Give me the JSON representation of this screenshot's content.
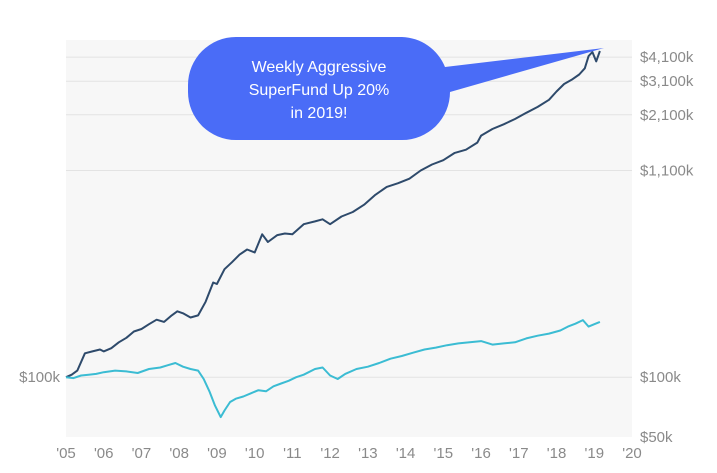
{
  "chart_data": {
    "type": "line",
    "title": "",
    "xlabel": "",
    "ylabel": "",
    "y_scale": "log",
    "ylim": [
      50,
      5000
    ],
    "xlim": [
      2005,
      2020
    ],
    "x_ticks": [
      "'05",
      "'06",
      "'07",
      "'08",
      "'09",
      "'10",
      "'11",
      "'12",
      "'13",
      "'14",
      "'15",
      "'16",
      "'17",
      "'18",
      "'19",
      "'20"
    ],
    "x_tick_values": [
      2005,
      2006,
      2007,
      2008,
      2009,
      2010,
      2011,
      2012,
      2013,
      2014,
      2015,
      2016,
      2017,
      2018,
      2019,
      2020
    ],
    "y_ticks_right": [
      "$4,100k",
      "$3,100k",
      "$2,100k",
      "$1,100k",
      "$100k",
      "$50k"
    ],
    "y_tick_values_right": [
      4100,
      3100,
      2100,
      1100,
      100,
      50
    ],
    "y_ticks_left": [
      "$100k"
    ],
    "y_tick_values_left": [
      100
    ],
    "grid": true,
    "series": [
      {
        "color": "#2e4a6b",
        "x": [
          2005.0,
          2005.15,
          2005.3,
          2005.5,
          2005.7,
          2005.9,
          2006.0,
          2006.2,
          2006.4,
          2006.6,
          2006.8,
          2007.0,
          2007.2,
          2007.4,
          2007.6,
          2007.8,
          2007.95,
          2008.1,
          2008.3,
          2008.5,
          2008.7,
          2008.9,
          2009.0,
          2009.2,
          2009.4,
          2009.6,
          2009.8,
          2010.0,
          2010.2,
          2010.35,
          2010.6,
          2010.8,
          2011.0,
          2011.3,
          2011.6,
          2011.8,
          2012.0,
          2012.3,
          2012.6,
          2012.9,
          2013.2,
          2013.5,
          2013.8,
          2014.1,
          2014.4,
          2014.7,
          2015.0,
          2015.3,
          2015.6,
          2015.9,
          2016.0,
          2016.3,
          2016.6,
          2016.9,
          2017.2,
          2017.5,
          2017.8,
          2018.0,
          2018.2,
          2018.4,
          2018.6,
          2018.75,
          2018.85,
          2018.95,
          2019.05,
          2019.15
        ],
        "values": [
          100,
          103,
          108,
          132,
          135,
          138,
          135,
          140,
          150,
          158,
          170,
          175,
          185,
          195,
          190,
          205,
          215,
          210,
          200,
          205,
          240,
          300,
          295,
          350,
          380,
          415,
          440,
          425,
          525,
          480,
          520,
          530,
          525,
          590,
          610,
          625,
          590,
          645,
          680,
          740,
          830,
          910,
          950,
          1000,
          1100,
          1180,
          1240,
          1350,
          1400,
          1520,
          1650,
          1780,
          1880,
          2000,
          2150,
          2300,
          2500,
          2750,
          3000,
          3150,
          3350,
          3600,
          4150,
          4350,
          3900,
          4400
        ]
      },
      {
        "color": "#3bbcd3",
        "x": [
          2005.0,
          2005.2,
          2005.4,
          2005.6,
          2005.8,
          2006.0,
          2006.3,
          2006.6,
          2006.9,
          2007.2,
          2007.5,
          2007.7,
          2007.9,
          2008.1,
          2008.3,
          2008.5,
          2008.65,
          2008.8,
          2008.95,
          2009.1,
          2009.2,
          2009.35,
          2009.5,
          2009.7,
          2009.9,
          2010.1,
          2010.3,
          2010.5,
          2010.7,
          2010.9,
          2011.1,
          2011.3,
          2011.6,
          2011.8,
          2012.0,
          2012.2,
          2012.4,
          2012.7,
          2013.0,
          2013.3,
          2013.6,
          2013.9,
          2014.2,
          2014.5,
          2014.8,
          2015.1,
          2015.4,
          2015.7,
          2016.0,
          2016.3,
          2016.6,
          2016.9,
          2017.2,
          2017.5,
          2017.8,
          2018.1,
          2018.3,
          2018.5,
          2018.7,
          2018.85,
          2019.0,
          2019.15
        ],
        "values": [
          100,
          99,
          102,
          103,
          104,
          106,
          108,
          107,
          105,
          110,
          112,
          115,
          118,
          113,
          110,
          108,
          98,
          85,
          72,
          63,
          68,
          75,
          78,
          80,
          83,
          86,
          85,
          90,
          93,
          96,
          100,
          103,
          110,
          112,
          102,
          98,
          104,
          110,
          113,
          118,
          124,
          128,
          133,
          138,
          141,
          145,
          148,
          150,
          152,
          146,
          148,
          150,
          157,
          162,
          166,
          172,
          180,
          186,
          194,
          180,
          185,
          190
        ]
      }
    ],
    "annotation": {
      "lines": [
        "Weekly Aggressive",
        "SuperFund Up 20%",
        "in 2019!"
      ],
      "color": "#4a6cf7"
    }
  }
}
